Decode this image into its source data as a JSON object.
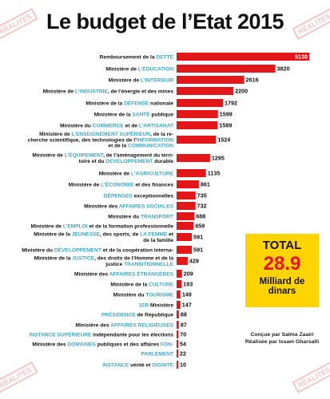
{
  "title": "Le budget de l’Etat 2015",
  "watermark": "RÉALITÉS",
  "colors": {
    "bar": "#e3171a",
    "highlight": "#3aa8c8",
    "total_bg": "#ffd400",
    "total_value": "#e3171a"
  },
  "total": {
    "label": "TOTAL",
    "value": "28.9",
    "unit_line1": "Milliard de",
    "unit_line2": "dinars"
  },
  "credits": {
    "line1": "Conçue par Salma Zaairi",
    "line2": "Réalisée par Issam Gharsalli"
  },
  "chart_data": {
    "type": "bar",
    "orientation": "horizontal",
    "title": "Le budget de l’Etat 2015",
    "xlim": [
      0,
      5130
    ],
    "categories": [
      [
        {
          "t": "Remboursement de la "
        },
        {
          "t": "DETTE",
          "h": 1
        }
      ],
      [
        {
          "t": "Ministère de "
        },
        {
          "t": "L’ÉDUCATION",
          "h": 1
        }
      ],
      [
        {
          "t": "Ministère de "
        },
        {
          "t": "L’INTÉRIEUR",
          "h": 1
        }
      ],
      [
        {
          "t": "Ministère de "
        },
        {
          "t": "L’INDUSTRIE",
          "h": 1
        },
        {
          "t": ", de l’énergie et des mines"
        }
      ],
      [
        {
          "t": "Ministère de la "
        },
        {
          "t": "DÉFENSE",
          "h": 1
        },
        {
          "t": " nationale"
        }
      ],
      [
        {
          "t": "Ministère de la "
        },
        {
          "t": "SANTÉ",
          "h": 1
        },
        {
          "t": " publique"
        }
      ],
      [
        {
          "t": "Ministère du "
        },
        {
          "t": "COMMERCE",
          "h": 1
        },
        {
          "t": " et de "
        },
        {
          "t": "L’ARTISANAT",
          "h": 1
        }
      ],
      [
        {
          "t": "Ministère de "
        },
        {
          "t": "L’ENSEIGNEMENT SUPÉRIEUR",
          "h": 1
        },
        {
          "t": ", de la re-"
        },
        {
          "br": 1
        },
        {
          "t": "cherche scientifique, des technologies de l’"
        },
        {
          "t": "INFORMATION",
          "h": 1
        },
        {
          "br": 1
        },
        {
          "t": "et de la "
        },
        {
          "t": "COMMUNICATION",
          "h": 1
        }
      ],
      [
        {
          "t": "Ministère de "
        },
        {
          "t": "L’ÉQUIPEMENT",
          "h": 1
        },
        {
          "t": ", de l’aménagement du terri-"
        },
        {
          "br": 1
        },
        {
          "t": "toire et du "
        },
        {
          "t": "DEVELOPPEMENT",
          "h": 1
        },
        {
          "t": " durable"
        }
      ],
      [
        {
          "t": "Ministère de "
        },
        {
          "t": "L’AGRICULTURE",
          "h": 1
        }
      ],
      [
        {
          "t": "Ministère de "
        },
        {
          "t": "L’ÉCONOMIE",
          "h": 1
        },
        {
          "t": " et des finances"
        }
      ],
      [
        {
          "t": "DÉPENSES",
          "h": 1
        },
        {
          "t": " exceptionnelles"
        }
      ],
      [
        {
          "t": "Ministère des "
        },
        {
          "t": "AFFAIRES SOCIALES",
          "h": 1
        }
      ],
      [
        {
          "t": "Ministère du "
        },
        {
          "t": "TRANSPORT",
          "h": 1
        }
      ],
      [
        {
          "t": "Ministère de "
        },
        {
          "t": "L’EMPLOI",
          "h": 1
        },
        {
          "t": " et de la formation professionnelle"
        }
      ],
      [
        {
          "t": "Ministère de la "
        },
        {
          "t": "JEUNESSE",
          "h": 1
        },
        {
          "t": ", des sports, de "
        },
        {
          "t": "LA FEMME",
          "h": 1
        },
        {
          "t": " et"
        },
        {
          "br": 1
        },
        {
          "t": "de la famille"
        }
      ],
      [
        {
          "t": "Ministère du "
        },
        {
          "t": "DÉVELOPPEMENT",
          "h": 1
        },
        {
          "t": " et de la coopération interna-"
        }
      ],
      [
        {
          "t": "Ministère de la "
        },
        {
          "t": "JUSTICE",
          "h": 1
        },
        {
          "t": ", des droits de l’Homme et de la"
        },
        {
          "br": 1
        },
        {
          "t": "justice "
        },
        {
          "t": "TRANSITIONNELLE",
          "h": 1
        }
      ],
      [
        {
          "t": "Ministère des "
        },
        {
          "t": "AFFAIRES ÉTRANGÈRES",
          "h": 1
        }
      ],
      [
        {
          "t": "Ministère de la "
        },
        {
          "t": "CULTURE",
          "h": 1
        }
      ],
      [
        {
          "t": "Ministère du "
        },
        {
          "t": "TOURISME",
          "h": 1
        }
      ],
      [
        {
          "t": "1ER",
          "h": 1
        },
        {
          "t": " Ministère"
        }
      ],
      [
        {
          "t": "PRÉSIDENCE",
          "h": 1
        },
        {
          "t": " de République"
        }
      ],
      [
        {
          "t": "Ministère des "
        },
        {
          "t": "AFFAIRES RELIGIEUSES",
          "h": 1
        }
      ],
      [
        {
          "t": "INSTANCE SUPÉRIEURE",
          "h": 1
        },
        {
          "t": " indépendante pour les élections"
        }
      ],
      [
        {
          "t": "Ministère des "
        },
        {
          "t": "DOMAINES",
          "h": 1
        },
        {
          "t": " publiques et des affaires "
        },
        {
          "t": "FON-",
          "h": 1
        }
      ],
      [
        {
          "t": "PARLEMENT",
          "h": 1
        }
      ],
      [
        {
          "t": "INSTANCE",
          "h": 1
        },
        {
          "t": " vérité et "
        },
        {
          "t": "DIGNITÉ",
          "h": 1
        }
      ]
    ],
    "values": [
      5130,
      3820,
      2616,
      2200,
      1792,
      1599,
      1589,
      1524,
      1295,
      1135,
      861,
      735,
      732,
      688,
      659,
      591,
      591,
      429,
      209,
      193,
      149,
      147,
      88,
      87,
      70,
      54,
      22,
      10
    ],
    "row_offset": [
      0,
      0,
      0,
      0,
      0,
      0,
      0,
      0,
      0,
      0,
      0,
      0,
      0,
      0,
      0,
      0,
      0,
      0,
      0,
      0,
      0,
      0,
      0,
      0,
      0,
      0,
      0,
      0
    ]
  }
}
